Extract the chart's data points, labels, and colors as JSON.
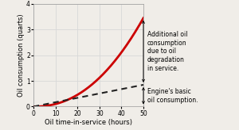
{
  "title": "",
  "xlabel": "Oil time-in-service (hours)",
  "ylabel": "Oil consumption (quarts)",
  "xlim": [
    0,
    50
  ],
  "ylim": [
    0,
    4
  ],
  "xticks": [
    0,
    10,
    20,
    30,
    40,
    50
  ],
  "yticks": [
    0,
    1,
    2,
    3,
    4
  ],
  "curve_color": "#cc0000",
  "curve_linewidth": 2.0,
  "linear_color": "#222222",
  "linear_linewidth": 1.5,
  "linear_end_y": 0.85,
  "curve_end_y": 3.45,
  "annotation1_text": "Additional oil\nconsumption\ndue to oil\ndegradation\nin service.",
  "annotation2_text": "Engine's basic\noil consumption.",
  "background_color": "#f0ede8",
  "grid_color": "#d8d8d8",
  "font_size_axis_label": 6.0,
  "font_size_tick": 5.5,
  "font_size_annotation": 5.5,
  "curve_exponent": 2.2
}
